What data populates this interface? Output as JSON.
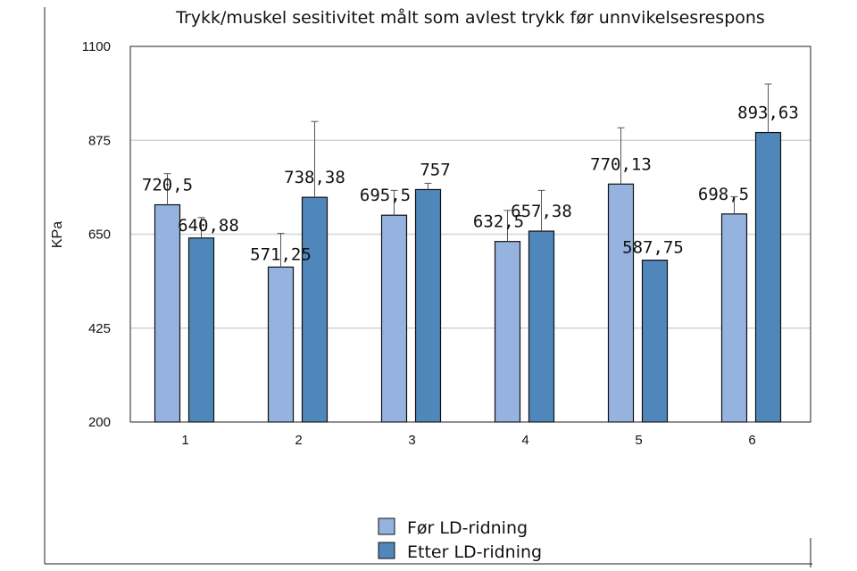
{
  "chart_data": {
    "type": "bar",
    "title": "Trykk/muskel sesitivitet målt som avlest trykk før unnvikelsesrespons",
    "xlabel": "",
    "ylabel": "KPa",
    "categories": [
      "1",
      "2",
      "3",
      "4",
      "5",
      "6"
    ],
    "ylim": [
      200,
      1100
    ],
    "yticks": [
      "200",
      "425",
      "650",
      "875",
      "1100"
    ],
    "grid": true,
    "legend_position": "bottom",
    "series": [
      {
        "name": "Før LD-ridning",
        "color": "#95b3de",
        "values": [
          720.5,
          571.25,
          695.5,
          632.5,
          770.13,
          698.5
        ],
        "labels": [
          "720,5",
          "571,25",
          "695,5",
          "632,5",
          "770,13",
          "698,5"
        ],
        "error_upper": [
          795,
          652,
          755,
          707,
          905,
          740
        ]
      },
      {
        "name": "Etter LD-ridning",
        "color": "#4f87bb",
        "values": [
          640.88,
          738.38,
          757,
          657.38,
          587.75,
          893.63
        ],
        "labels": [
          "640,88",
          "738,38",
          "757",
          "657,38",
          "587,75",
          "893,63"
        ],
        "error_upper": [
          690,
          920,
          772,
          755,
          587.75,
          1010
        ]
      }
    ]
  }
}
